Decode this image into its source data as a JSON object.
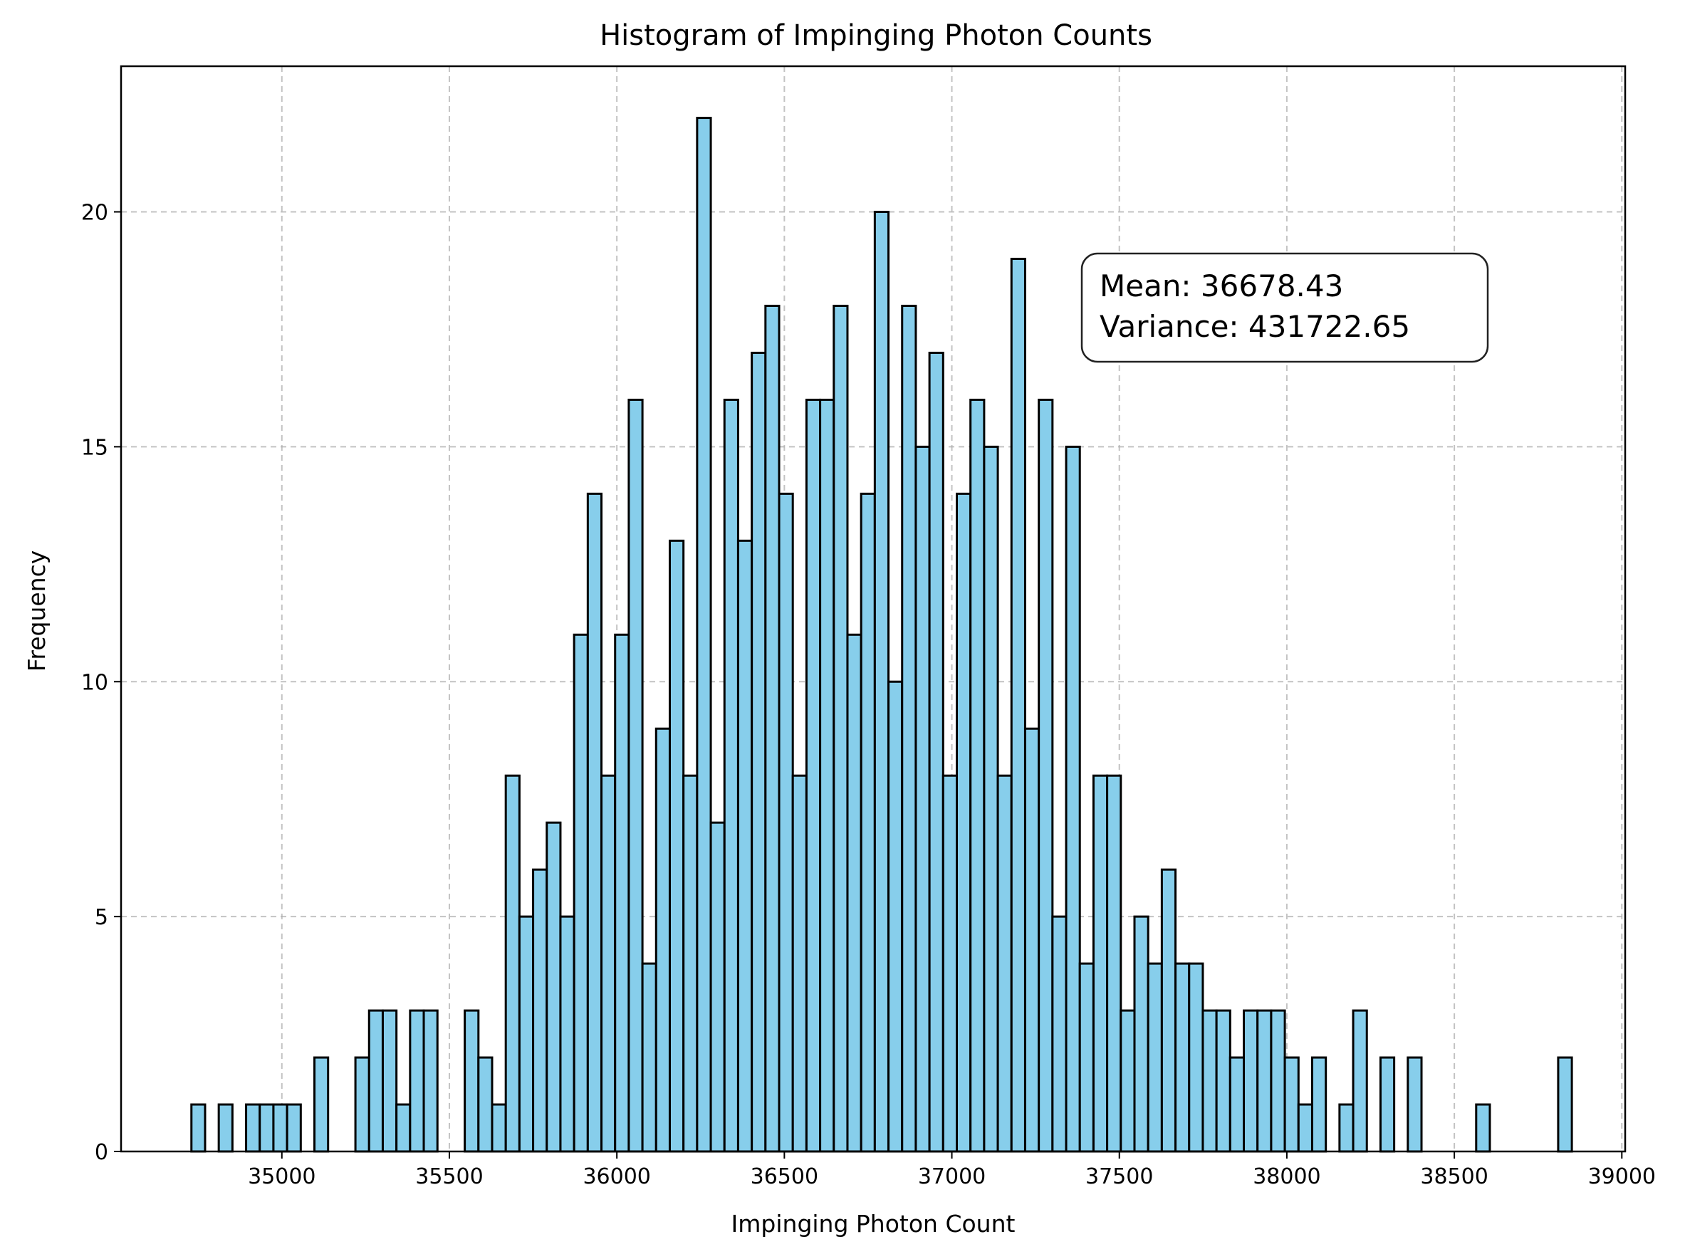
{
  "chart_data": {
    "type": "bar",
    "title": "Histogram of Impinging Photon Counts",
    "xlabel": "Impinging Photon Count",
    "ylabel": "Frequency",
    "xlim": [
      34520,
      39010
    ],
    "ylim": [
      0,
      23.1
    ],
    "xticks": [
      35000,
      35500,
      36000,
      36500,
      37000,
      37500,
      38000,
      38500,
      39000
    ],
    "yticks": [
      0,
      5,
      10,
      15,
      20
    ],
    "grid": true,
    "bar_color": "#87ceeb",
    "edge_color": "#000000",
    "bin_start": 34730,
    "bin_width": 40.8,
    "values": [
      1,
      0,
      1,
      0,
      1,
      1,
      1,
      1,
      0,
      2,
      0,
      0,
      2,
      3,
      3,
      1,
      3,
      3,
      0,
      0,
      3,
      2,
      1,
      8,
      5,
      6,
      7,
      5,
      11,
      14,
      8,
      11,
      16,
      4,
      9,
      13,
      8,
      22,
      7,
      16,
      13,
      17,
      18,
      14,
      8,
      16,
      16,
      18,
      11,
      14,
      20,
      10,
      18,
      15,
      17,
      8,
      14,
      16,
      15,
      8,
      19,
      9,
      16,
      5,
      15,
      4,
      8,
      8,
      3,
      5,
      4,
      6,
      4,
      4,
      3,
      3,
      2,
      3,
      3,
      3,
      2,
      1,
      2,
      0,
      1,
      3,
      0,
      2,
      0,
      2,
      0,
      0,
      0,
      0,
      1,
      0,
      0,
      0,
      0,
      0,
      2
    ],
    "annotation": {
      "lines": [
        "Mean: 36678.43",
        "Variance: 431722.65"
      ]
    }
  }
}
